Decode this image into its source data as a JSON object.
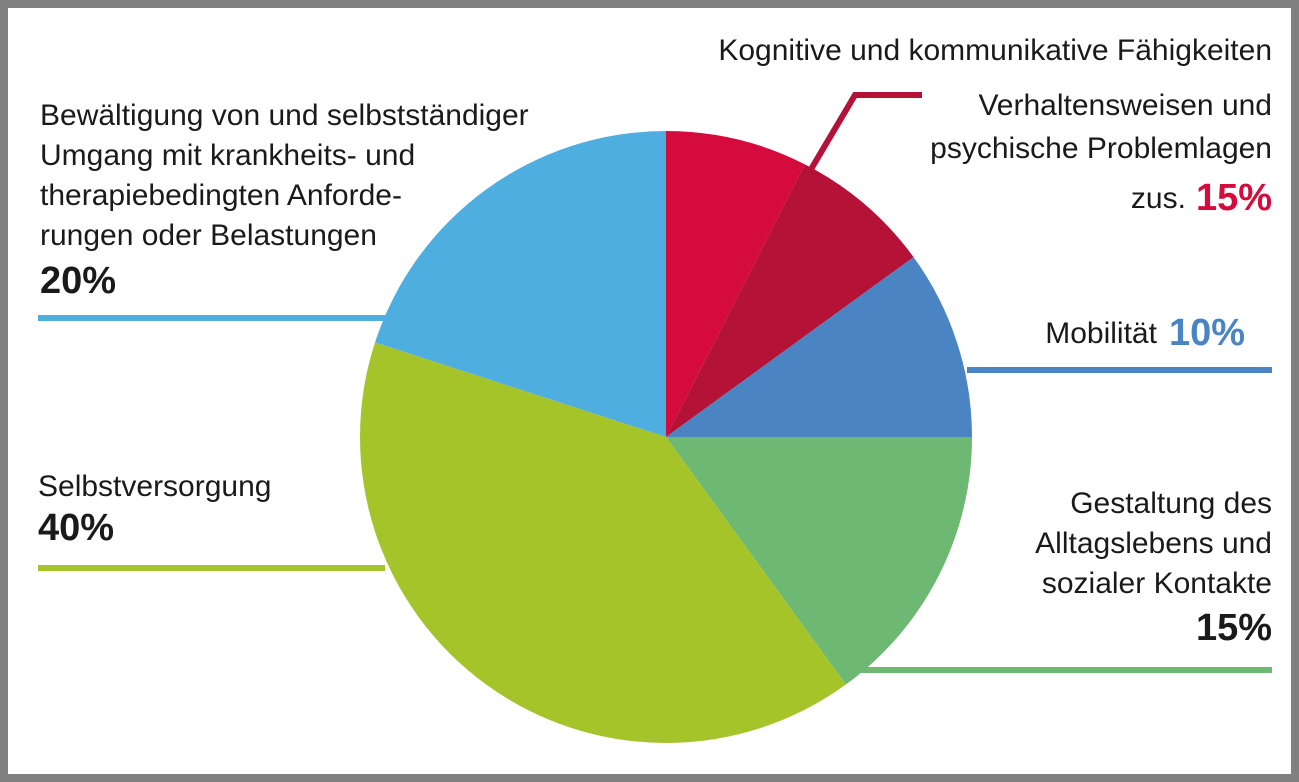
{
  "chart_data": {
    "type": "pie",
    "categories": [
      [
        "Kognitive und kommunikative Fähigkeiten"
      ],
      [
        "Verhaltensweisen und",
        "psychische Problemlagen"
      ],
      [
        "Mobilität"
      ],
      [
        "Gestaltung des",
        "Alltagslebens und",
        "sozialer Kontakte"
      ],
      [
        "Selbstversorgung"
      ],
      [
        "Bewältigung von und selbstständiger",
        "Umgang mit krankheits- und",
        "therapiebedingten Anforde-",
        "rungen oder Belastungen"
      ]
    ],
    "values": [
      7.5,
      7.5,
      10,
      15,
      40,
      20
    ],
    "value_labels": [
      null,
      null,
      "10%",
      "15%",
      "40%",
      "20%"
    ],
    "colors": [
      "#d40b3c",
      "#b51237",
      "#4a84c2",
      "#6db872",
      "#a5c42a",
      "#4faee0"
    ],
    "groups": [
      {
        "members": [
          0,
          1
        ],
        "label": "zus.",
        "value": 15,
        "value_label": "15%"
      }
    ]
  }
}
